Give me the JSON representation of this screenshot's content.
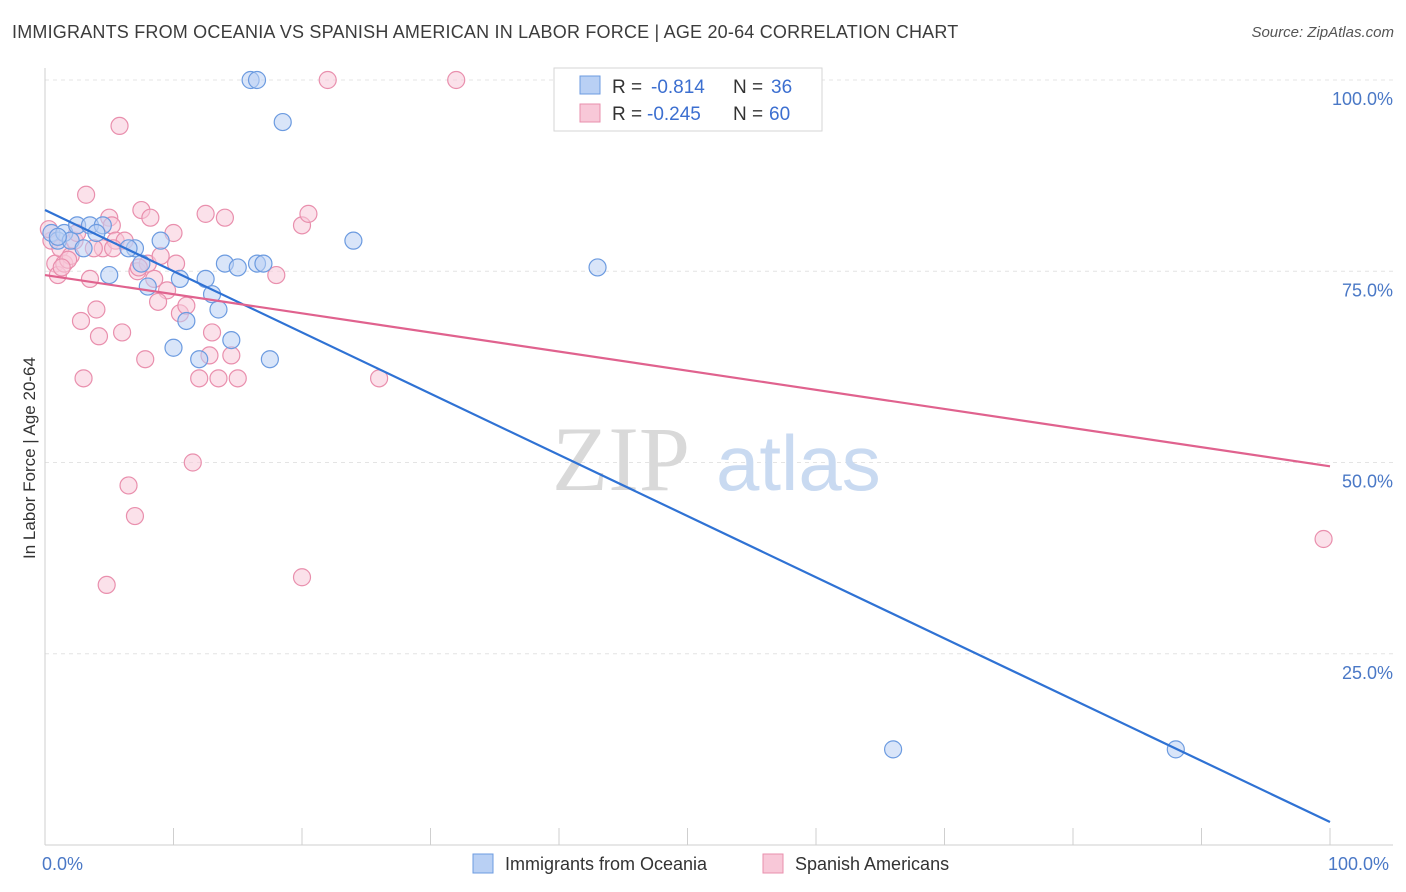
{
  "chart_data": {
    "type": "scatter",
    "title": "IMMIGRANTS FROM OCEANIA VS SPANISH AMERICAN IN LABOR FORCE | AGE 20-64 CORRELATION CHART",
    "source": "Source: ZipAtlas.com",
    "xlabel": "",
    "ylabel": "In Labor Force | Age 20-64",
    "xlim": [
      0,
      100
    ],
    "ylim": [
      0,
      100
    ],
    "x_tick_labels": [
      "0.0%",
      "100.0%"
    ],
    "y_ticks": [
      25,
      50,
      75,
      100
    ],
    "y_tick_labels": [
      "25.0%",
      "50.0%",
      "75.0%",
      "100.0%"
    ],
    "watermark": {
      "zip": "ZIP",
      "atlas": "atlas"
    },
    "legend": {
      "r_label": "R =",
      "n_label": "N =",
      "entries": [
        {
          "r": "-0.814",
          "n": "36"
        },
        {
          "r": "-0.245",
          "n": "60"
        }
      ]
    },
    "series": [
      {
        "name": "Immigrants from Oceania",
        "color": "#6c9be0",
        "fill": "#b9d0f4",
        "line_color": "#2f72d4",
        "trend": {
          "x0": 0,
          "y0": 83,
          "x1": 100,
          "y1": 3
        },
        "points": [
          [
            0.5,
            80
          ],
          [
            1,
            79
          ],
          [
            1.5,
            80
          ],
          [
            2,
            79
          ],
          [
            2.5,
            81
          ],
          [
            3,
            78
          ],
          [
            3.5,
            81
          ],
          [
            4.5,
            81
          ],
          [
            5,
            74.5
          ],
          [
            7,
            78
          ],
          [
            7.5,
            76
          ],
          [
            8,
            73
          ],
          [
            9,
            79
          ],
          [
            10,
            65
          ],
          [
            10.5,
            74
          ],
          [
            11,
            68.5
          ],
          [
            12,
            63.5
          ],
          [
            12.5,
            74
          ],
          [
            13,
            72
          ],
          [
            13.5,
            70
          ],
          [
            14,
            76
          ],
          [
            14.5,
            66
          ],
          [
            15,
            75.5
          ],
          [
            16,
            100
          ],
          [
            16.5,
            100
          ],
          [
            16.5,
            76
          ],
          [
            17,
            76
          ],
          [
            17.5,
            63.5
          ],
          [
            18.5,
            94.5
          ],
          [
            24,
            79
          ],
          [
            43,
            75.5
          ],
          [
            66,
            12.5
          ],
          [
            88,
            12.5
          ],
          [
            1,
            79.5
          ],
          [
            6.5,
            78
          ],
          [
            4,
            80
          ]
        ]
      },
      {
        "name": "Spanish Americans",
        "color": "#e98fad",
        "fill": "#f8c8d8",
        "line_color": "#e0628e",
        "trend": {
          "x0": 0,
          "y0": 74.5,
          "x1": 100,
          "y1": 49.5
        },
        "points": [
          [
            0.5,
            79
          ],
          [
            0.8,
            76
          ],
          [
            1,
            74.5
          ],
          [
            1.2,
            78
          ],
          [
            1.5,
            76
          ],
          [
            2,
            77
          ],
          [
            2.3,
            79
          ],
          [
            2.8,
            68.5
          ],
          [
            3,
            61
          ],
          [
            3.2,
            85
          ],
          [
            3.5,
            74
          ],
          [
            4,
            70
          ],
          [
            4.2,
            66.5
          ],
          [
            4.5,
            78
          ],
          [
            4.8,
            34
          ],
          [
            5,
            82
          ],
          [
            5.2,
            81
          ],
          [
            5.5,
            79
          ],
          [
            5.8,
            94
          ],
          [
            6,
            67
          ],
          [
            6.5,
            47
          ],
          [
            7,
            43
          ],
          [
            7.2,
            75
          ],
          [
            7.5,
            83
          ],
          [
            7.8,
            63.5
          ],
          [
            8,
            76
          ],
          [
            8.2,
            82
          ],
          [
            8.5,
            74
          ],
          [
            9,
            77
          ],
          [
            9.5,
            72.5
          ],
          [
            10,
            80
          ],
          [
            10.5,
            69.5
          ],
          [
            11,
            70.5
          ],
          [
            11.5,
            50
          ],
          [
            12,
            61
          ],
          [
            12.5,
            82.5
          ],
          [
            13,
            67
          ],
          [
            13.5,
            61
          ],
          [
            14,
            82
          ],
          [
            14.5,
            64
          ],
          [
            15,
            61
          ],
          [
            18,
            74.5
          ],
          [
            20,
            81
          ],
          [
            20.5,
            82.5
          ],
          [
            20,
            35
          ],
          [
            22,
            100
          ],
          [
            26,
            61
          ],
          [
            32,
            100
          ],
          [
            1.8,
            76.5
          ],
          [
            2.5,
            80
          ],
          [
            3.8,
            78
          ],
          [
            6.2,
            79
          ],
          [
            8.8,
            71
          ],
          [
            0.3,
            80.5
          ],
          [
            1.3,
            75.5
          ],
          [
            5.3,
            78
          ],
          [
            7.3,
            75.5
          ],
          [
            10.2,
            76
          ],
          [
            12.8,
            64
          ],
          [
            99.5,
            40
          ]
        ]
      }
    ]
  }
}
